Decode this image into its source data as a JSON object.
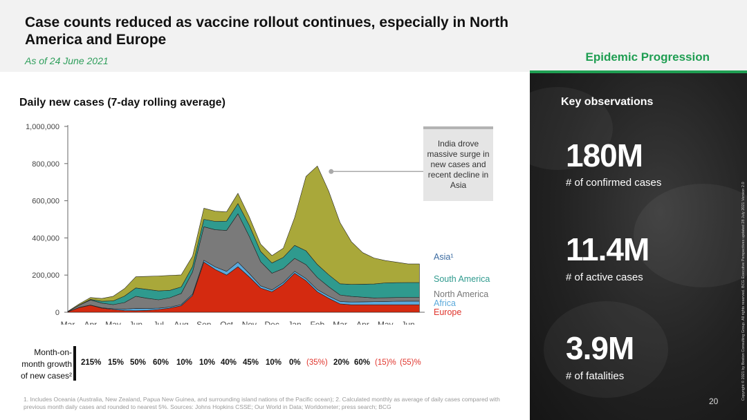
{
  "header": {
    "title": "Case counts reduced as vaccine rollout continues, especially in North America and Europe",
    "date": "As of 24 June 2021",
    "section": "Epidemic Progression"
  },
  "chart_data": {
    "type": "area",
    "title": "Daily new cases (7-day rolling average)",
    "xlabel": "",
    "ylabel": "",
    "ylim": [
      0,
      1000000
    ],
    "y_ticks": [
      0,
      200000,
      400000,
      600000,
      800000,
      1000000
    ],
    "y_tick_labels": [
      "0",
      "200,000",
      "400,000",
      "600,000",
      "800,000",
      "1,000,000"
    ],
    "x_tick_labels": [
      "Mar",
      "Apr",
      "May",
      "Jun",
      "Jul",
      "Aug",
      "Sep",
      "Oct",
      "Nov",
      "Dec",
      "Jan",
      "Feb",
      "Mar",
      "Apr",
      "May",
      "Jun"
    ],
    "x": [
      0,
      0.5,
      1,
      1.5,
      2,
      2.5,
      3,
      3.5,
      4,
      4.5,
      5,
      5.5,
      6,
      6.5,
      7,
      7.5,
      8,
      8.5,
      9,
      9.5,
      10,
      10.5,
      11,
      11.5,
      12,
      12.5,
      13,
      13.5,
      14,
      14.5,
      15,
      15.5
    ],
    "series": [
      {
        "name": "Europe",
        "color": "#d42a10",
        "values": [
          2000,
          25000,
          38000,
          22000,
          15000,
          9000,
          8000,
          10000,
          15000,
          22000,
          35000,
          90000,
          270000,
          230000,
          200000,
          245000,
          190000,
          130000,
          110000,
          150000,
          210000,
          170000,
          110000,
          75000,
          45000,
          40000,
          40000,
          40000,
          40000,
          40000,
          40000,
          40000
        ]
      },
      {
        "name": "Africa",
        "color": "#5aa9db",
        "values": [
          0,
          500,
          1000,
          2000,
          4000,
          8000,
          13000,
          10000,
          7000,
          6000,
          6000,
          7000,
          10000,
          14000,
          20000,
          25000,
          18000,
          12000,
          10000,
          10000,
          10000,
          11000,
          12000,
          12000,
          13000,
          15000,
          16000,
          17000,
          18000,
          19000,
          20000,
          20000
        ]
      },
      {
        "name": "North America",
        "color": "#7a7a7a",
        "values": [
          1000,
          12000,
          27000,
          25000,
          22000,
          35000,
          65000,
          55000,
          45000,
          50000,
          60000,
          120000,
          180000,
          200000,
          220000,
          260000,
          200000,
          130000,
          90000,
          75000,
          70000,
          75000,
          65000,
          50000,
          35000,
          30000,
          25000,
          20000,
          20000,
          20000,
          20000,
          20000
        ]
      },
      {
        "name": "South America",
        "color": "#2f9a8e",
        "values": [
          0,
          1000,
          3000,
          10000,
          20000,
          35000,
          45000,
          48000,
          48000,
          40000,
          35000,
          30000,
          40000,
          45000,
          50000,
          55000,
          60000,
          55000,
          55000,
          60000,
          70000,
          75000,
          70000,
          65000,
          60000,
          65000,
          70000,
          75000,
          80000,
          80000,
          80000,
          80000
        ]
      },
      {
        "name": "Asia¹",
        "color": "#a9a83a",
        "values": [
          2000,
          6000,
          10000,
          15000,
          25000,
          40000,
          60000,
          70000,
          80000,
          80000,
          65000,
          55000,
          60000,
          55000,
          50000,
          55000,
          45000,
          40000,
          40000,
          50000,
          150000,
          400000,
          530000,
          450000,
          330000,
          230000,
          170000,
          140000,
          120000,
          110000,
          100000,
          100000
        ]
      }
    ],
    "annotation": "India drove massive surge in new cases and recent decline in Asia"
  },
  "legend": {
    "asia": "Asia¹",
    "south_america": "South America",
    "north_america": "North America",
    "africa": "Africa",
    "europe": "Europe"
  },
  "growth": {
    "label": "Month-on-month growth of new cases²",
    "label_lines": [
      "Month-on-",
      "month growth",
      "of new cases²"
    ],
    "values": [
      "215%",
      "15%",
      "50%",
      "60%",
      "10%",
      "10%",
      "40%",
      "45%",
      "10%",
      "0%",
      "(35%)",
      "20%",
      "60%",
      "(15)%",
      "(55)%"
    ]
  },
  "footnote": "1. Includes Oceania (Australia, New Zealand, Papua New Guinea, and surrounding island nations of the Pacific ocean); 2. Calculated monthly as average of daily cases compared with previous month daily cases and rounded to nearest 5%. Sources: Johns Hopkins CSSE; Our World in Data; Worldometer; press search; BCG",
  "observations": {
    "title": "Key observations",
    "stats": [
      {
        "value": "180M",
        "label": "# of confirmed cases"
      },
      {
        "value": "11.4M",
        "label": "# of active cases"
      },
      {
        "value": "3.9M",
        "label": "# of fatalities"
      }
    ]
  },
  "copyright": "Copyright © 2021 by Boston Consulting Group. All rights reserved. BCG Executive Perspectives updated 28 July 2021 Version 2.0",
  "page_number": "20",
  "colors": {
    "accent": "#1f9e52",
    "negative": "#e0342c"
  }
}
